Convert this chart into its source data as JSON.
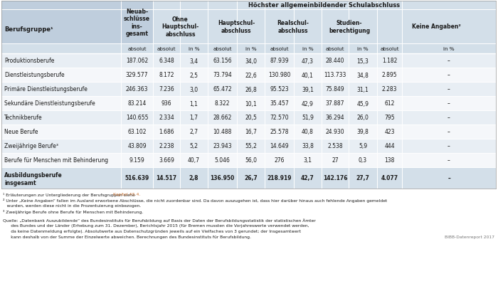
{
  "col1_header": "Berufsgruppe¹",
  "col2_header": "Neuab-\nschlüsse\nins-\ngesamt",
  "banner": "Höchster allgemeinbildender Schulabschluss",
  "subgroup_headers": [
    "Ohne\nHauptschul-\nabschluss",
    "Hauptschul-\nabschluss",
    "Realschul-\nabschluss",
    "Studien-\nberechtigung",
    "Keine Angaben²"
  ],
  "row_labels": [
    "Produktionsberufe",
    "Dienstleistungsberufe",
    "Primäre Dienstleistungsberufe",
    "Sekundäre Dienstleistungsberufe",
    "Technikberufe",
    "Neue Berufe",
    "Zweijährige Berufe³",
    "Berufe für Menschen mit Behinderung"
  ],
  "total_label_line1": "Ausbildungsberufe",
  "total_label_line2": "insgesamt",
  "col2_values": [
    "187.062",
    "329.577",
    "246.363",
    "83.214",
    "140.655",
    "63.102",
    "43.809",
    "9.159",
    "516.639"
  ],
  "ohne_abs": [
    "6.348",
    "8.172",
    "7.236",
    "936",
    "2.334",
    "1.686",
    "2.238",
    "3.669",
    "14.517"
  ],
  "ohne_pct": [
    "3,4",
    "2,5",
    "3,0",
    "1,1",
    "1,7",
    "2,7",
    "5,2",
    "40,7",
    "2,8"
  ],
  "haupt_abs": [
    "63.156",
    "73.794",
    "65.472",
    "8.322",
    "28.662",
    "10.488",
    "23.943",
    "5.046",
    "136.950"
  ],
  "haupt_pct": [
    "34,0",
    "22,6",
    "26,8",
    "10,1",
    "20,5",
    "16,7",
    "55,2",
    "56,0",
    "26,7"
  ],
  "real_abs": [
    "87.939",
    "130.980",
    "95.523",
    "35.457",
    "72.570",
    "25.578",
    "14.649",
    "276",
    "218.919"
  ],
  "real_pct": [
    "47,3",
    "40,1",
    "39,1",
    "42,9",
    "51,9",
    "40,8",
    "33,8",
    "3,1",
    "42,7"
  ],
  "stud_abs": [
    "28.440",
    "113.733",
    "75.849",
    "37.887",
    "36.294",
    "24.930",
    "2.538",
    "27",
    "142.176"
  ],
  "stud_pct": [
    "15,3",
    "34,8",
    "31,1",
    "45,9",
    "26,0",
    "39,8",
    "5,9",
    "0,3",
    "27,7"
  ],
  "keine_abs": [
    "1.182",
    "2.895",
    "2.283",
    "612",
    "795",
    "423",
    "444",
    "138",
    "4.077"
  ],
  "keine_pct": [
    "–",
    "–",
    "–",
    "–",
    "–",
    "–",
    "–",
    "–",
    "–"
  ],
  "fn1_pre": "¹ Erläuterungen zur Untergliederung der Berufsgruppen siehe ",
  "fn1_link": "Kapitel A5.4.",
  "fn2": "² Unter „Keine Angaben“ fallen im Ausland erworbene Abschlüsse, die nicht zuordenbar sind. Da davon auszugehen ist, dass hier darüber hinaus auch fehlende Angaben gemeldet",
  "fn2b": "   wurden, werden diese nicht in die Prozentuierung einbezogen.",
  "fn3": "³ Zweijährige Berufe ohne Berufe für Menschen mit Behinderung.",
  "src1": "Quelle: „Datenbank Auszubildende“ des Bundesinstituts für Berufsbildung auf Basis der Daten der Berufsbildungsstatistik der statistischen Ämter",
  "src2": "      des Bundes und der Länder (Erhebung zum 31. Dezember), Berichtsjahr 2015 (für Bremen mussten die Vorjahreswerte verwendet werden,",
  "src3": "      da keine Datenmeldung erfolgte). Absolutwerte aus Datenschutzgründen jeweils auf ein Vielfaches von 3 gerundet; der Insgesamtwert",
  "src4": "      kann deshalb von der Summe der Einzelwerte abweichen. Berechnungen des Bundesinstituts für Berufsbildung.",
  "bibb": "BIBB-Datenreport 2017",
  "header_bg": "#bfcedd",
  "subheader_bg": "#d3dfe9",
  "row_alt": "#e8eef4",
  "row_white": "#f5f7fa",
  "total_bg": "#d3dfe9",
  "link_color": "#c87030",
  "text_color": "#1a1a1a",
  "gray_color": "#777777"
}
